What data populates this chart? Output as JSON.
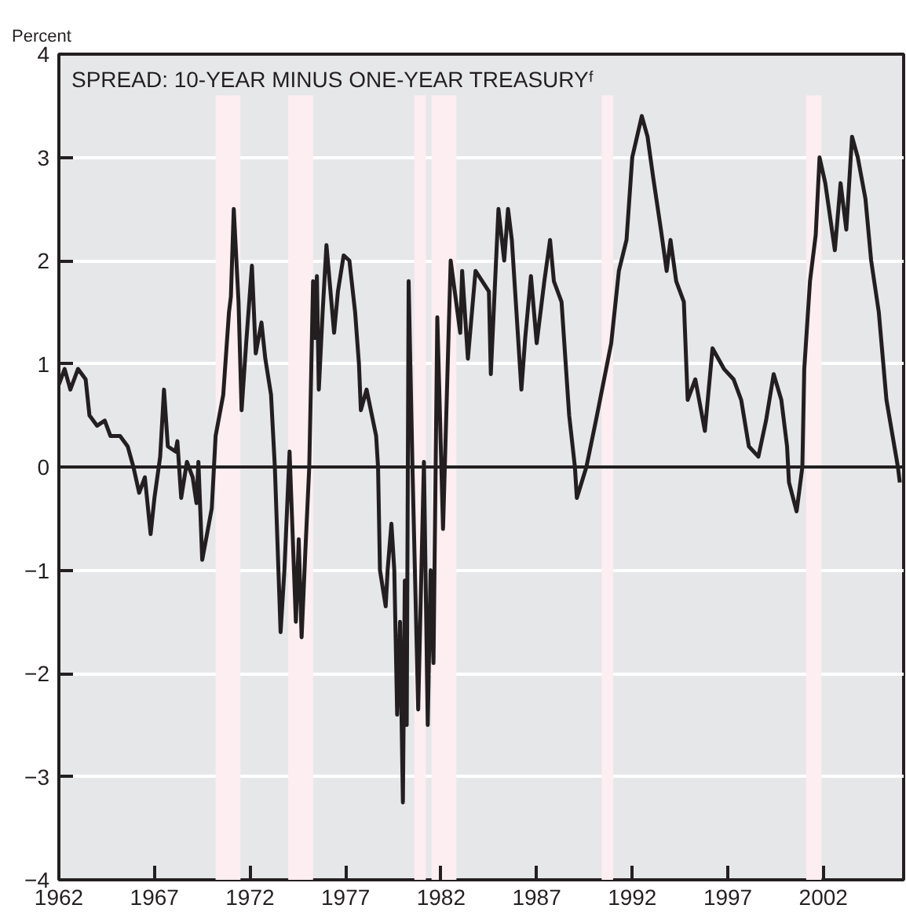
{
  "chart_data": {
    "type": "line",
    "title": "SPREAD: 10-YEAR MINUS ONE-YEAR TREASURYᶠ",
    "ylabel": "Percent",
    "x": [
      1962.0,
      1962.3,
      1962.6,
      1963.0,
      1963.4,
      1963.6,
      1964.0,
      1964.4,
      1964.7,
      1965.2,
      1965.6,
      1965.9,
      1966.2,
      1966.5,
      1966.8,
      1967.0,
      1967.3,
      1967.5,
      1967.7,
      1968.1,
      1968.2,
      1968.4,
      1968.7,
      1969.0,
      1969.2,
      1969.3,
      1969.5,
      1970.0,
      1970.2,
      1970.6,
      1970.9,
      1971.0,
      1971.15,
      1971.4,
      1971.56,
      1971.8,
      1972.1,
      1972.3,
      1972.6,
      1972.8,
      1973.1,
      1973.3,
      1973.6,
      1973.8,
      1974.07,
      1974.2,
      1974.4,
      1974.55,
      1974.7,
      1974.9,
      1975.1,
      1975.3,
      1975.4,
      1975.5,
      1975.6,
      1975.8,
      1976.0,
      1976.4,
      1976.6,
      1976.9,
      1977.2,
      1977.5,
      1977.7,
      1977.8,
      1978.1,
      1978.6,
      1978.7,
      1978.8,
      1979.1,
      1979.2,
      1979.4,
      1979.55,
      1979.7,
      1979.85,
      1980.0,
      1980.1,
      1980.2,
      1980.3,
      1980.5,
      1980.8,
      1981.1,
      1981.3,
      1981.45,
      1981.6,
      1981.8,
      1982.1,
      1982.3,
      1982.5,
      1983.0,
      1983.1,
      1983.4,
      1983.8,
      1984.5,
      1984.6,
      1985.0,
      1985.3,
      1985.5,
      1985.7,
      1986.2,
      1986.4,
      1986.7,
      1987.0,
      1987.4,
      1987.7,
      1987.9,
      1988.3,
      1988.7,
      1989.0,
      1989.1,
      1989.6,
      1990.1,
      1990.9,
      1991.3,
      1991.7,
      1992.0,
      1992.5,
      1992.8,
      1993.1,
      1993.5,
      1993.8,
      1994.0,
      1994.3,
      1994.7,
      1994.9,
      1995.3,
      1995.8,
      1996.2,
      1996.8,
      1997.3,
      1997.7,
      1998.1,
      1998.6,
      1999.0,
      1999.4,
      1999.8,
      2000.1,
      2000.2,
      2000.6,
      2000.9,
      2001.0,
      2001.3,
      2001.6,
      2001.8,
      2002.1,
      2002.6,
      2002.9,
      2003.2,
      2003.5,
      2003.8,
      2004.2,
      2004.5,
      2004.9,
      2005.3,
      2005.9,
      2006.0
    ],
    "series": [
      {
        "color": "#231f20",
        "values": [
          0.8,
          0.95,
          0.75,
          0.95,
          0.85,
          0.5,
          0.4,
          0.45,
          0.3,
          0.3,
          0.2,
          0.0,
          -0.25,
          -0.1,
          -0.65,
          -0.3,
          0.1,
          0.75,
          0.2,
          0.15,
          0.25,
          -0.3,
          0.05,
          -0.1,
          -0.35,
          0.05,
          -0.9,
          -0.4,
          0.3,
          0.7,
          1.5,
          1.65,
          2.5,
          1.6,
          0.55,
          1.2,
          1.95,
          1.1,
          1.4,
          1.05,
          0.7,
          0.0,
          -1.6,
          -1.0,
          0.15,
          -0.5,
          -1.5,
          -0.7,
          -1.65,
          -0.8,
          0.0,
          1.8,
          1.25,
          1.85,
          0.75,
          1.5,
          2.15,
          1.3,
          1.7,
          2.05,
          2.0,
          1.5,
          1.0,
          0.55,
          0.75,
          0.3,
          0.0,
          -1.0,
          -1.35,
          -1.0,
          -0.55,
          -1.0,
          -2.4,
          -1.5,
          -3.25,
          -1.1,
          -2.5,
          1.8,
          0.0,
          -2.35,
          0.05,
          -2.5,
          -1.0,
          -1.9,
          1.45,
          -0.6,
          0.7,
          2.0,
          1.3,
          1.9,
          1.05,
          1.9,
          1.7,
          0.9,
          2.5,
          2.0,
          2.5,
          2.2,
          0.75,
          1.25,
          1.85,
          1.2,
          1.8,
          2.2,
          1.8,
          1.6,
          0.5,
          0.0,
          -0.3,
          0.0,
          0.45,
          1.2,
          1.9,
          2.2,
          3.0,
          3.4,
          3.2,
          2.8,
          2.3,
          1.9,
          2.2,
          1.8,
          1.6,
          0.65,
          0.85,
          0.35,
          1.15,
          0.95,
          0.85,
          0.65,
          0.2,
          0.1,
          0.45,
          0.9,
          0.65,
          0.2,
          -0.15,
          -0.43,
          0.0,
          0.95,
          1.8,
          2.25,
          3.0,
          2.75,
          2.1,
          2.75,
          2.3,
          3.2,
          3.0,
          2.6,
          2.0,
          1.5,
          0.65,
          0.0,
          -0.15
        ]
      }
    ],
    "xlim": [
      1962,
      2006.2
    ],
    "ylim": [
      -4,
      4
    ],
    "xticks": [
      1962,
      1967,
      1972,
      1977,
      1982,
      1987,
      1992,
      1997,
      2002
    ],
    "yticks": [
      -4,
      -3,
      -2,
      -1,
      0,
      1,
      2,
      3,
      4
    ],
    "grid": "y",
    "ref_lines": [
      {
        "axis": "y",
        "value": 0,
        "color": "#231f20"
      }
    ],
    "bands": [
      {
        "axis": "x",
        "from": 1970.2,
        "to": 1971.5,
        "color": "#fdeef2"
      },
      {
        "axis": "x",
        "from": 1974.0,
        "to": 1975.3,
        "color": "#fdeef2"
      },
      {
        "axis": "x",
        "from": 1980.6,
        "to": 1981.2,
        "color": "#fdeef2"
      },
      {
        "axis": "x",
        "from": 1981.5,
        "to": 1982.8,
        "color": "#fdeef2"
      },
      {
        "axis": "x",
        "from": 1990.4,
        "to": 1991.0,
        "color": "#fdeef2"
      },
      {
        "axis": "x",
        "from": 2001.1,
        "to": 2001.9,
        "color": "#fdeef2"
      }
    ]
  }
}
